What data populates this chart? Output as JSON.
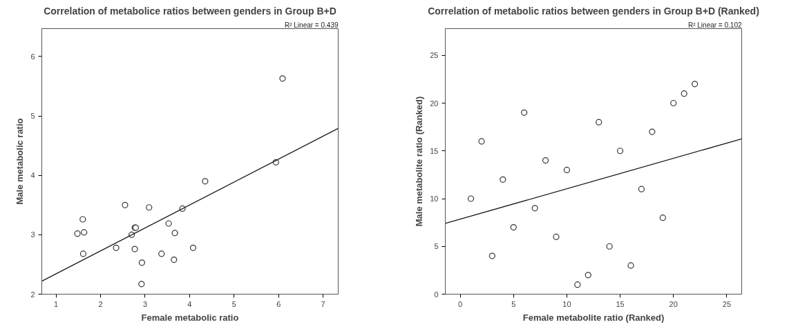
{
  "chart_data": [
    {
      "type": "scatter",
      "title": "Correlation of metabolice ratios between genders in Group B+D",
      "xlabel": "Female metabolic ratio",
      "ylabel": "Male metabolic ratio",
      "xlim": [
        0.68,
        7.34
      ],
      "ylim": [
        2,
        6.47
      ],
      "xticks": [
        1,
        2,
        3,
        4,
        5,
        6,
        7
      ],
      "yticks": [
        2,
        3,
        4,
        5,
        6
      ],
      "grid": false,
      "marker": "circle",
      "annotations": [
        "R² Linear = 0.439"
      ],
      "series": [
        {
          "color": "#333333",
          "x": [
            6.09,
            5.94,
            4.35,
            2.55,
            3.09,
            3.84,
            1.6,
            3.53,
            2.77,
            2.79,
            1.48,
            1.63,
            2.7,
            3.67,
            2.35,
            2.77,
            4.08,
            1.61,
            3.37,
            3.65,
            2.93,
            2.92
          ],
          "values": [
            5.63,
            4.22,
            3.9,
            3.5,
            3.46,
            3.44,
            3.26,
            3.19,
            3.12,
            3.12,
            3.02,
            3.04,
            3.0,
            3.03,
            2.78,
            2.76,
            2.78,
            2.68,
            2.68,
            2.58,
            2.53,
            2.17
          ]
        },
        {
          "type": "line",
          "color": "#1a1a1a",
          "marker": "none",
          "line_style": "solid",
          "x": [
            0.68,
            7.34
          ],
          "values": [
            2.22,
            4.79
          ]
        }
      ]
    },
    {
      "type": "scatter",
      "title": "Correlation of metabolic ratios between genders in Group B+D (Ranked)",
      "xlabel": "Female metabolite ratio (Ranked)",
      "ylabel": "Male metabolite ratio (Ranked)",
      "xlim": [
        -1.4,
        26.4
      ],
      "ylim": [
        0,
        27.8
      ],
      "xticks": [
        0,
        5,
        10,
        15,
        20,
        25
      ],
      "yticks": [
        0,
        5,
        10,
        15,
        20,
        25
      ],
      "grid": false,
      "marker": "circle",
      "annotations": [
        "R² Linear = 0.102"
      ],
      "series": [
        {
          "color": "#333333",
          "x": [
            1,
            2,
            3,
            4,
            5,
            6,
            7,
            8,
            9,
            10,
            11,
            12,
            13,
            14,
            15,
            16,
            17,
            18,
            19,
            20,
            21,
            22
          ],
          "values": [
            10,
            16,
            4,
            12,
            7,
            19,
            9,
            14,
            6,
            13,
            1,
            2,
            18,
            5,
            15,
            3,
            11,
            17,
            8,
            20,
            21,
            22
          ]
        },
        {
          "type": "line",
          "color": "#1a1a1a",
          "marker": "none",
          "line_style": "solid",
          "x": [
            -1.4,
            26.4
          ],
          "values": [
            7.41,
            16.26
          ]
        }
      ]
    }
  ]
}
